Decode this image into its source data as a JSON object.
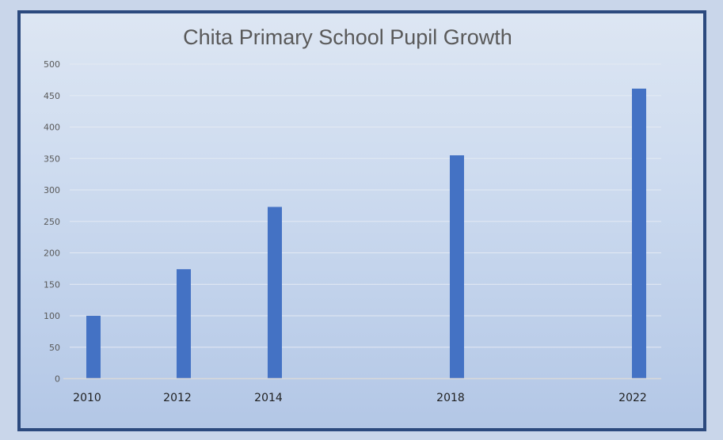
{
  "chart_data": {
    "type": "bar",
    "title": "Chita Primary School Pupil Growth",
    "xlabel": "",
    "ylabel": "",
    "categories": [
      "2010",
      "2012",
      "2014",
      "2018",
      "2022"
    ],
    "values": [
      100,
      174,
      273,
      355,
      461
    ],
    "ylim": [
      0,
      500
    ],
    "yticks": [
      "0",
      "50",
      "100",
      "150",
      "200",
      "250",
      "300",
      "350",
      "400",
      "450",
      "500"
    ],
    "grid": true,
    "legend": "none",
    "bar_color": "#4472c4"
  }
}
